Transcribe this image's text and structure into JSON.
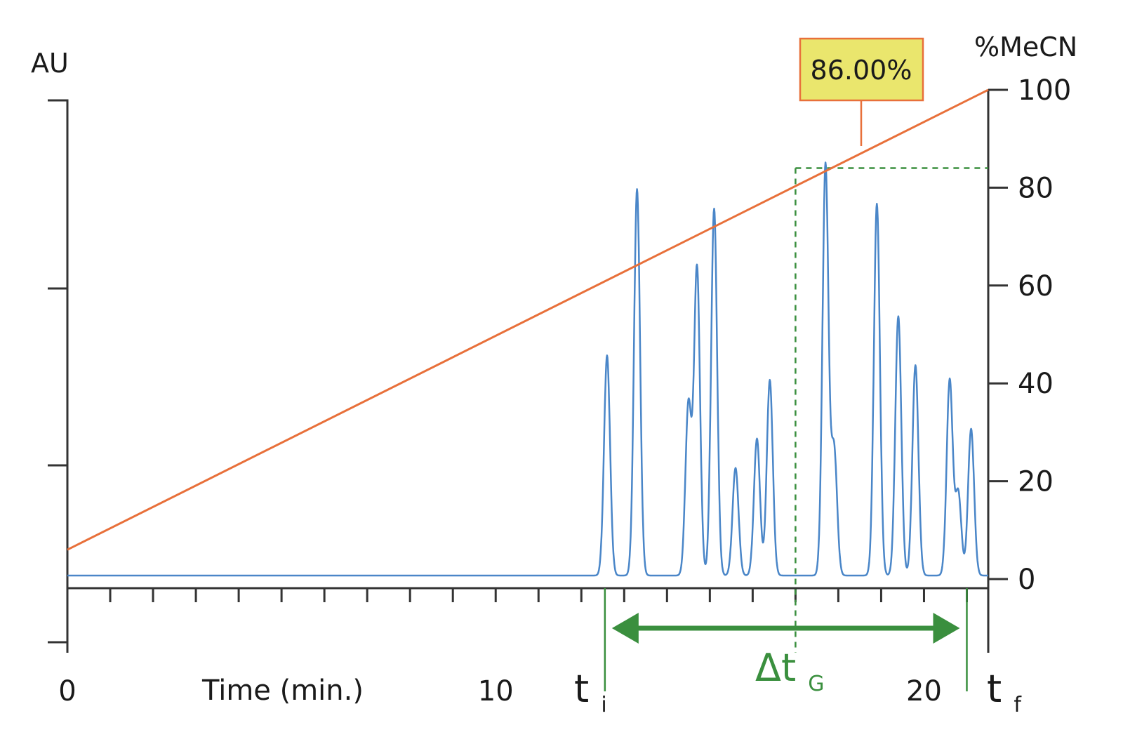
{
  "chart_data": {
    "type": "line",
    "title": "",
    "xlabel": "Time (min.)",
    "left_axis_label": "AU",
    "right_axis_label": "%MeCN",
    "x_tick_labels": [
      {
        "value": 0,
        "label": "0"
      },
      {
        "value": 10,
        "label": "10"
      },
      {
        "value": 20,
        "label": "20"
      }
    ],
    "xlim": [
      0,
      21.5
    ],
    "right_ylim": [
      0,
      100
    ],
    "right_ticks": [
      0,
      20,
      40,
      60,
      80,
      100
    ],
    "right_tick_labels": [
      "0",
      "20",
      "40",
      "60",
      "80",
      "100"
    ],
    "series": [
      {
        "name": "%MeCN",
        "axis": "right",
        "color": "#e8703a",
        "x": [
          0,
          21.5
        ],
        "y": [
          6,
          100
        ]
      },
      {
        "name": "AU",
        "axis": "left",
        "color": "#4a86c8",
        "baseline": 0,
        "peaks": [
          {
            "t": 12.6,
            "h": 45
          },
          {
            "t": 13.3,
            "h": 79
          },
          {
            "t": 14.5,
            "h": 35
          },
          {
            "t": 14.7,
            "h": 63
          },
          {
            "t": 15.1,
            "h": 75
          },
          {
            "t": 15.6,
            "h": 22
          },
          {
            "t": 16.1,
            "h": 28
          },
          {
            "t": 16.4,
            "h": 40
          },
          {
            "t": 17.7,
            "h": 84
          },
          {
            "t": 17.9,
            "h": 26
          },
          {
            "t": 18.9,
            "h": 76
          },
          {
            "t": 19.4,
            "h": 53
          },
          {
            "t": 19.8,
            "h": 43
          },
          {
            "t": 20.6,
            "h": 40
          },
          {
            "t": 20.8,
            "h": 17
          },
          {
            "t": 21.1,
            "h": 30
          }
        ]
      }
    ],
    "callout": {
      "label": "86.00%",
      "bg": "#eae66d",
      "border": "#e8703a"
    },
    "dashed_reference": {
      "time": 17.0,
      "percent": 84,
      "color": "#3a8f3e"
    },
    "gradient_window": {
      "ti": 12.55,
      "tf": 21.0,
      "ti_label": "t",
      "ti_sub": "i",
      "tf_label": "t",
      "tf_sub": "f",
      "delta_label": "Δt",
      "delta_sub": "G",
      "color": "#3a8f3e"
    }
  }
}
